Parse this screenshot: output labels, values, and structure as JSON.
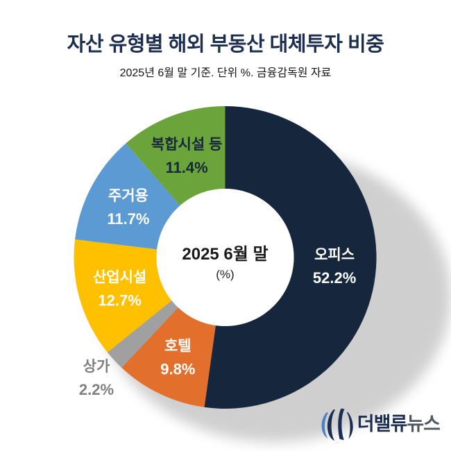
{
  "page": {
    "title": "자산 유형별 해외 부동산 대체투자 비중",
    "subtitle": "2025년 6월 말 기준. 단위 %. 금융감독원 자료"
  },
  "chart_data": {
    "type": "pie",
    "subtype": "donut",
    "title": "자산 유형별 해외 부동산 대체투자 비중",
    "source_note": "2025년 6월 말 기준. 단위 %. 금융감독원 자료",
    "start_angle_deg": 0,
    "direction": "clockwise",
    "center_label": {
      "title": "2025 6월 말",
      "unit": "(%)"
    },
    "categories": [
      "오피스",
      "호텔",
      "상가",
      "산업시설",
      "주거용",
      "복합시설 등"
    ],
    "values": [
      52.2,
      9.8,
      2.2,
      12.7,
      11.7,
      11.4
    ],
    "segment_colors": [
      "#15263D",
      "#E2702C",
      "#A0A0A0",
      "#FFC000",
      "#5B9AD3",
      "#6CA43C"
    ],
    "label_text_colors": [
      "#FFFFFF",
      "#FFFFFF",
      "#7F7F7F",
      "#FFFFFF",
      "#FFFFFF",
      "#15263D"
    ],
    "label_outside": [
      false,
      false,
      true,
      false,
      false,
      false
    ],
    "legend": "none",
    "value_format": "percent_one_decimal"
  },
  "logo": {
    "icon": "striped-circle-v-icon",
    "text_primary": "더밸류",
    "text_secondary": "뉴스",
    "primary_color": "#1B2D52",
    "secondary_color": "#50575F",
    "accent_color": "#4A7FC1"
  }
}
